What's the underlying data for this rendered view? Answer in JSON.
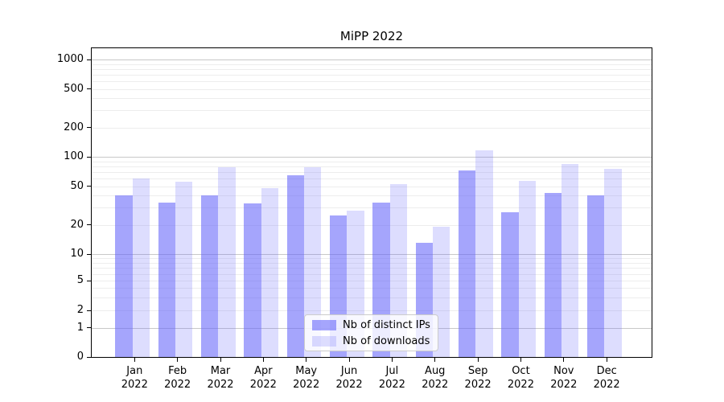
{
  "chart_data": {
    "type": "bar",
    "title": "MiPP 2022",
    "categories": [
      "Jan 2022",
      "Feb 2022",
      "Mar 2022",
      "Apr 2022",
      "May 2022",
      "Jun 2022",
      "Jul 2022",
      "Aug 2022",
      "Sep 2022",
      "Oct 2022",
      "Nov 2022",
      "Dec 2022"
    ],
    "series": [
      {
        "name": "Nb of distinct IPs",
        "color": "rgba(100,100,250,0.58)",
        "values": [
          40,
          34,
          40,
          33,
          65,
          25,
          34,
          13,
          73,
          27,
          43,
          40
        ]
      },
      {
        "name": "Nb of downloads",
        "color": "rgba(100,100,250,0.22)",
        "values": [
          60,
          56,
          78,
          48,
          78,
          28,
          53,
          19,
          117,
          57,
          85,
          75
        ]
      }
    ],
    "yticks": [
      0,
      1,
      2,
      5,
      10,
      20,
      50,
      100,
      200,
      500,
      1000
    ],
    "yscale": "symlog",
    "ylim": [
      0,
      1300
    ],
    "xlabel": "",
    "ylabel": "",
    "grid": "horizontal, major decade lines darker, minor log lines faint",
    "legend_position": "lower center, overlapping bars",
    "colors": {
      "major_grid": "#c8c8c8",
      "minor_grid": "#ededed",
      "frame": "#000000",
      "text": "#000000",
      "background": "#ffffff"
    }
  }
}
